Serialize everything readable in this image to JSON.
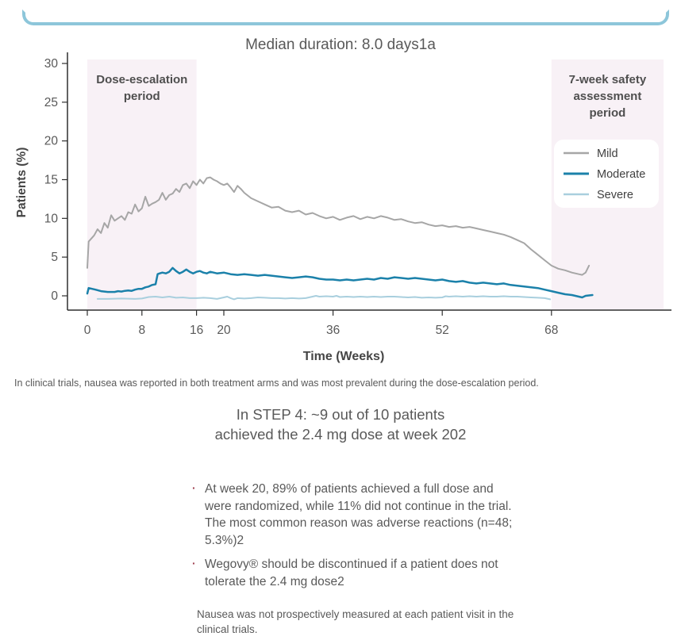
{
  "page": {
    "top_border_color": "#8dc6da",
    "background": "#ffffff"
  },
  "chart_data": {
    "type": "line",
    "title": "Median duration: 8.0 days1a",
    "xlabel": "Time (Weeks)",
    "ylabel": "Patients (%)",
    "x_ticks": [
      0,
      8,
      16,
      20,
      36,
      52,
      68
    ],
    "y_ticks": [
      0,
      5,
      10,
      15,
      20,
      25,
      30
    ],
    "xlim": [
      0,
      85
    ],
    "ylim": [
      -2,
      30
    ],
    "grid": false,
    "legend_position": "inside-right",
    "axis_color": "#2f2f2f",
    "region_fill": "#f8f1f6",
    "regions": [
      {
        "label_lines": [
          "Dose-escalation",
          "period"
        ],
        "week_start": 0,
        "week_end": 16
      },
      {
        "label_lines": [
          "7-week safety",
          "assessment",
          "period"
        ],
        "week_start": 68,
        "week_end": 84.5
      }
    ],
    "series": [
      {
        "name": "Mild",
        "color": "#a6a6a6",
        "width": 2,
        "points": [
          [
            0,
            3.6
          ],
          [
            0.2,
            7.0
          ],
          [
            1,
            7.8
          ],
          [
            1.5,
            8.6
          ],
          [
            2,
            8.1
          ],
          [
            2.5,
            9.4
          ],
          [
            3,
            8.8
          ],
          [
            3.5,
            10.4
          ],
          [
            4,
            9.7
          ],
          [
            4.5,
            10.0
          ],
          [
            5,
            10.3
          ],
          [
            5.5,
            9.8
          ],
          [
            6,
            10.8
          ],
          [
            6.5,
            10.6
          ],
          [
            7,
            11.8
          ],
          [
            7.5,
            10.9
          ],
          [
            8,
            11.3
          ],
          [
            8.5,
            12.8
          ],
          [
            9,
            11.6
          ],
          [
            9.5,
            11.9
          ],
          [
            10,
            12.1
          ],
          [
            10.5,
            12.4
          ],
          [
            11,
            13.3
          ],
          [
            11.5,
            12.4
          ],
          [
            12,
            13.0
          ],
          [
            12.5,
            13.2
          ],
          [
            13,
            13.8
          ],
          [
            13.5,
            13.4
          ],
          [
            14,
            14.3
          ],
          [
            14.5,
            14.5
          ],
          [
            15,
            13.9
          ],
          [
            15.5,
            14.8
          ],
          [
            16,
            14.3
          ],
          [
            16.5,
            15.0
          ],
          [
            17,
            14.5
          ],
          [
            17.5,
            15.2
          ],
          [
            18,
            15.3
          ],
          [
            18.5,
            15.0
          ],
          [
            19,
            14.8
          ],
          [
            19.5,
            14.5
          ],
          [
            20,
            14.3
          ],
          [
            20.5,
            14.5
          ],
          [
            21,
            14.0
          ],
          [
            21.5,
            13.4
          ],
          [
            22,
            14.2
          ],
          [
            22.5,
            13.8
          ],
          [
            23,
            13.3
          ],
          [
            24,
            12.6
          ],
          [
            25,
            12.2
          ],
          [
            26,
            11.8
          ],
          [
            27,
            11.4
          ],
          [
            28,
            11.5
          ],
          [
            29,
            11.0
          ],
          [
            30,
            10.8
          ],
          [
            31,
            11.0
          ],
          [
            32,
            10.5
          ],
          [
            33,
            10.7
          ],
          [
            34,
            10.3
          ],
          [
            35,
            10.0
          ],
          [
            36,
            10.2
          ],
          [
            37,
            9.8
          ],
          [
            38,
            10.1
          ],
          [
            39,
            10.3
          ],
          [
            40,
            9.9
          ],
          [
            41,
            10.2
          ],
          [
            42,
            10.0
          ],
          [
            43,
            10.3
          ],
          [
            44,
            10.1
          ],
          [
            45,
            9.8
          ],
          [
            46,
            9.9
          ],
          [
            47,
            9.6
          ],
          [
            48,
            9.4
          ],
          [
            49,
            9.5
          ],
          [
            50,
            9.2
          ],
          [
            51,
            9.0
          ],
          [
            52,
            9.1
          ],
          [
            53,
            8.9
          ],
          [
            54,
            9.0
          ],
          [
            55,
            8.8
          ],
          [
            56,
            8.9
          ],
          [
            57,
            8.7
          ],
          [
            58,
            8.5
          ],
          [
            59,
            8.3
          ],
          [
            60,
            8.1
          ],
          [
            61,
            7.9
          ],
          [
            62,
            7.6
          ],
          [
            63,
            7.2
          ],
          [
            64,
            6.8
          ],
          [
            65,
            6.0
          ],
          [
            66,
            5.3
          ],
          [
            67,
            4.6
          ],
          [
            68,
            3.9
          ],
          [
            69,
            3.5
          ],
          [
            70,
            3.3
          ],
          [
            71,
            3.0
          ],
          [
            72,
            2.8
          ],
          [
            72.5,
            2.7
          ],
          [
            73,
            3.0
          ],
          [
            73.5,
            3.9
          ]
        ]
      },
      {
        "name": "Moderate",
        "color": "#1b81aa",
        "width": 2.5,
        "points": [
          [
            0,
            0.3
          ],
          [
            0.2,
            1.0
          ],
          [
            0.7,
            0.9
          ],
          [
            1.2,
            0.8
          ],
          [
            2,
            0.6
          ],
          [
            3,
            0.5
          ],
          [
            4,
            0.5
          ],
          [
            4.5,
            0.6
          ],
          [
            5,
            0.55
          ],
          [
            5.5,
            0.65
          ],
          [
            6,
            0.7
          ],
          [
            6.5,
            0.65
          ],
          [
            7,
            0.8
          ],
          [
            7.5,
            0.9
          ],
          [
            8,
            0.9
          ],
          [
            8.5,
            1.1
          ],
          [
            9,
            1.2
          ],
          [
            9.5,
            1.4
          ],
          [
            10,
            1.5
          ],
          [
            10.3,
            2.8
          ],
          [
            10.6,
            2.9
          ],
          [
            11,
            3.0
          ],
          [
            11.5,
            2.9
          ],
          [
            12,
            3.1
          ],
          [
            12.5,
            3.6
          ],
          [
            13,
            3.2
          ],
          [
            13.5,
            2.9
          ],
          [
            14,
            3.1
          ],
          [
            14.5,
            3.4
          ],
          [
            15,
            3.1
          ],
          [
            15.5,
            2.9
          ],
          [
            16,
            3.1
          ],
          [
            16.5,
            3.2
          ],
          [
            17,
            3.0
          ],
          [
            17.5,
            2.9
          ],
          [
            18,
            3.1
          ],
          [
            18.5,
            3.0
          ],
          [
            19,
            2.9
          ],
          [
            20,
            3.0
          ],
          [
            21,
            2.8
          ],
          [
            22,
            2.7
          ],
          [
            23,
            2.8
          ],
          [
            24,
            2.7
          ],
          [
            25,
            2.6
          ],
          [
            26,
            2.7
          ],
          [
            27,
            2.6
          ],
          [
            28,
            2.5
          ],
          [
            29,
            2.4
          ],
          [
            30,
            2.3
          ],
          [
            31,
            2.4
          ],
          [
            32,
            2.5
          ],
          [
            33,
            2.4
          ],
          [
            34,
            2.2
          ],
          [
            35,
            2.1
          ],
          [
            36,
            2.1
          ],
          [
            37,
            2.0
          ],
          [
            38,
            2.1
          ],
          [
            39,
            2.0
          ],
          [
            40,
            2.1
          ],
          [
            41,
            2.2
          ],
          [
            42,
            2.1
          ],
          [
            43,
            2.3
          ],
          [
            44,
            2.2
          ],
          [
            45,
            2.4
          ],
          [
            46,
            2.3
          ],
          [
            47,
            2.2
          ],
          [
            48,
            2.3
          ],
          [
            49,
            2.2
          ],
          [
            50,
            2.1
          ],
          [
            51,
            2.0
          ],
          [
            52,
            2.1
          ],
          [
            53,
            1.9
          ],
          [
            54,
            1.8
          ],
          [
            55,
            1.9
          ],
          [
            56,
            1.7
          ],
          [
            57,
            1.6
          ],
          [
            58,
            1.7
          ],
          [
            59,
            1.6
          ],
          [
            60,
            1.5
          ],
          [
            61,
            1.6
          ],
          [
            62,
            1.4
          ],
          [
            63,
            1.3
          ],
          [
            64,
            1.2
          ],
          [
            65,
            1.1
          ],
          [
            66,
            1.0
          ],
          [
            67,
            0.8
          ],
          [
            68,
            0.6
          ],
          [
            69,
            0.4
          ],
          [
            70,
            0.2
          ],
          [
            71,
            0.1
          ],
          [
            72,
            -0.1
          ],
          [
            72.5,
            -0.2
          ],
          [
            73,
            0.0
          ],
          [
            74,
            0.1
          ]
        ]
      },
      {
        "name": "Severe",
        "color": "#a9cfde",
        "width": 2,
        "points": [
          [
            1.5,
            -0.4
          ],
          [
            3,
            -0.4
          ],
          [
            5,
            -0.35
          ],
          [
            7,
            -0.4
          ],
          [
            8,
            -0.35
          ],
          [
            9,
            -0.15
          ],
          [
            10,
            -0.1
          ],
          [
            11,
            -0.2
          ],
          [
            12,
            -0.1
          ],
          [
            13,
            -0.25
          ],
          [
            14,
            -0.2
          ],
          [
            15,
            -0.3
          ],
          [
            16,
            -0.3
          ],
          [
            17,
            -0.25
          ],
          [
            18,
            -0.3
          ],
          [
            19,
            -0.4
          ],
          [
            20,
            -0.2
          ],
          [
            20.5,
            -0.1
          ],
          [
            21,
            -0.3
          ],
          [
            21.5,
            -0.45
          ],
          [
            22,
            -0.3
          ],
          [
            23,
            -0.35
          ],
          [
            24,
            -0.3
          ],
          [
            25,
            -0.2
          ],
          [
            26,
            -0.25
          ],
          [
            27,
            -0.3
          ],
          [
            28,
            -0.3
          ],
          [
            29,
            -0.35
          ],
          [
            30,
            -0.3
          ],
          [
            31,
            -0.35
          ],
          [
            32,
            -0.3
          ],
          [
            33,
            -0.1
          ],
          [
            33.5,
            0.0
          ],
          [
            34,
            -0.1
          ],
          [
            35,
            -0.05
          ],
          [
            36,
            -0.1
          ],
          [
            36.5,
            0.0
          ],
          [
            37,
            -0.15
          ],
          [
            38,
            -0.1
          ],
          [
            39,
            -0.15
          ],
          [
            40,
            -0.1
          ],
          [
            41,
            -0.15
          ],
          [
            42,
            -0.1
          ],
          [
            43,
            -0.15
          ],
          [
            44,
            -0.1
          ],
          [
            45,
            -0.1
          ],
          [
            46,
            -0.15
          ],
          [
            47,
            -0.2
          ],
          [
            48,
            -0.15
          ],
          [
            49,
            -0.25
          ],
          [
            50,
            -0.2
          ],
          [
            51,
            -0.25
          ],
          [
            52,
            -0.2
          ],
          [
            52.5,
            -0.05
          ],
          [
            53,
            -0.1
          ],
          [
            54,
            -0.05
          ],
          [
            55,
            -0.1
          ],
          [
            56,
            -0.05
          ],
          [
            57,
            -0.1
          ],
          [
            58,
            -0.05
          ],
          [
            59,
            -0.1
          ],
          [
            60,
            -0.1
          ],
          [
            61,
            -0.05
          ],
          [
            62,
            -0.1
          ],
          [
            63,
            -0.1
          ],
          [
            64,
            -0.15
          ],
          [
            65,
            -0.2
          ],
          [
            66,
            -0.25
          ],
          [
            67,
            -0.3
          ],
          [
            67.8,
            -0.45
          ]
        ]
      }
    ]
  },
  "caption": "In clinical trials, nausea was reported in both treatment arms and was most prevalent during the dose-escalation period.",
  "heading": {
    "line1": "In STEP 4: ~9 out of 10 patients",
    "line2": "achieved the 2.4 mg dose at week 202"
  },
  "bullets": [
    "At week 20, 89% of patients achieved a full dose and were randomized, while 11% did not continue in the trial. The most common reason was adverse reactions (n=48; 5.3%)2",
    "Wegovy® should be discontinued if a patient does not tolerate the 2.4 mg dose2"
  ],
  "footnote": "Nausea was not prospectively measured at each patient visit in the clinical trials."
}
